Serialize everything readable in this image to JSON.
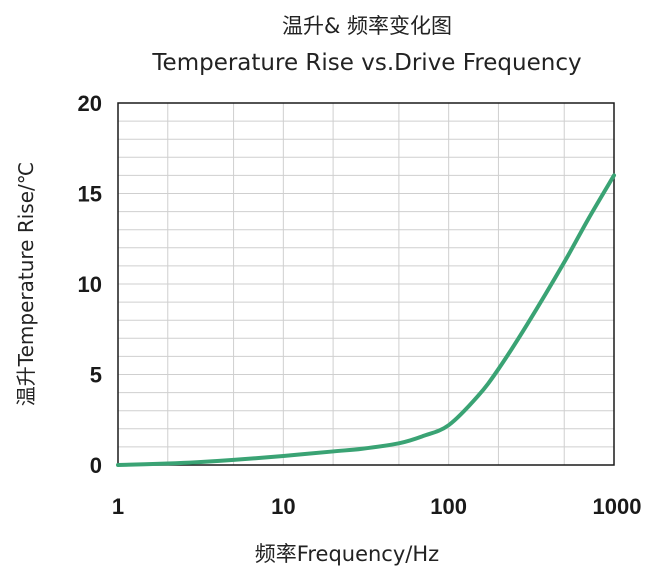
{
  "chart_data": {
    "type": "line",
    "title": "温升& 频率变化图",
    "subtitle": "Temperature Rise vs.Drive Frequency",
    "xlabel": "频率Frequency/Hz",
    "ylabel": "温升Temperature Rise/℃",
    "xscale": "log",
    "xlim": [
      1,
      1000
    ],
    "ylim": [
      0,
      20
    ],
    "xticks": [
      1,
      10,
      100,
      1000
    ],
    "xtick_labels": [
      "1",
      "10",
      "100",
      "1000"
    ],
    "yticks": [
      0,
      5,
      10,
      15,
      20
    ],
    "ytick_labels": [
      "0",
      "5",
      "10",
      "15",
      "20"
    ],
    "grid": true,
    "legend": "none",
    "series": [
      {
        "color": "#3aa374",
        "x": [
          1,
          2,
          3,
          5,
          10,
          20,
          30,
          50,
          70,
          100,
          150,
          200,
          300,
          500,
          700,
          1000
        ],
        "y": [
          0,
          0.08,
          0.15,
          0.28,
          0.5,
          0.75,
          0.9,
          1.2,
          1.6,
          2.2,
          3.8,
          5.3,
          7.8,
          11.2,
          13.6,
          16.0
        ]
      }
    ]
  }
}
